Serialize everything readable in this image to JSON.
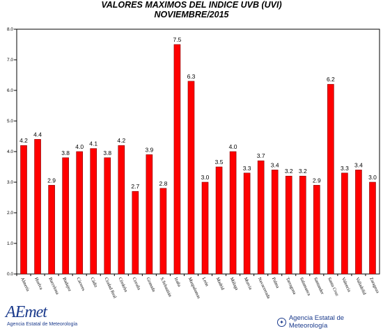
{
  "title": "VALORES MAXIMOS DEL INDICE UVB (UVI)",
  "subtitle": "NOVIEMBRE/2015",
  "footer": {
    "logo_text": "AEmet",
    "logo_subtitle": "Agencia Estatal de Meteorología",
    "agency_text": "Agencia Estatal de Meteorología",
    "agency_icon": "government-seal-icon"
  },
  "colors": {
    "bar": "#ff0000",
    "bar_border": "#800000",
    "axis": "#000000",
    "grid": "#d0d0d0"
  },
  "chart_data": {
    "type": "bar",
    "title": "VALORES MAXIMOS DEL INDICE UVB (UVI)",
    "subtitle": "NOVIEMBRE/2015",
    "xlabel": "",
    "ylabel": "",
    "ylim": [
      0,
      8
    ],
    "yticks": [
      "0.0",
      "1.0",
      "2.0",
      "3.0",
      "4.0",
      "5.0",
      "6.0",
      "7.0",
      "8.0"
    ],
    "grid": false,
    "categories": [
      "Almería",
      "Huelva",
      "Barcelona",
      "Badajoz",
      "Cáceres",
      "Cádiz",
      "Ciudad Real",
      "Córdoba",
      "Coruña",
      "Granada",
      "S.Sebastián",
      "Izaña",
      "Maspalomas",
      "León",
      "Madrid",
      "Málaga",
      "Murcia",
      "Navacerrada",
      "Palma",
      "Tarragona",
      "Salamanca",
      "Santander",
      "Santa Cruz",
      "Valencia",
      "Valladolid",
      "Zaragoza"
    ],
    "values": [
      4.2,
      4.4,
      2.9,
      3.8,
      4.0,
      4.1,
      3.8,
      4.2,
      2.7,
      3.9,
      2.8,
      7.5,
      6.3,
      3.0,
      3.5,
      4.0,
      3.3,
      3.7,
      3.4,
      3.2,
      3.2,
      2.9,
      6.2,
      3.3,
      3.4,
      3.0
    ],
    "value_labels": [
      "4.2",
      "4.4",
      "2.9",
      "3.8",
      "4.0",
      "4.1",
      "3.8",
      "4.2",
      "2.7",
      "3.9",
      "2.8",
      "7.5",
      "6.3",
      "3.0",
      "3.5",
      "4.0",
      "3.3",
      "3.7",
      "3.4",
      "3.2",
      "3.2",
      "2.9",
      "6.2",
      "3.3",
      "3.4",
      "3.0"
    ]
  }
}
